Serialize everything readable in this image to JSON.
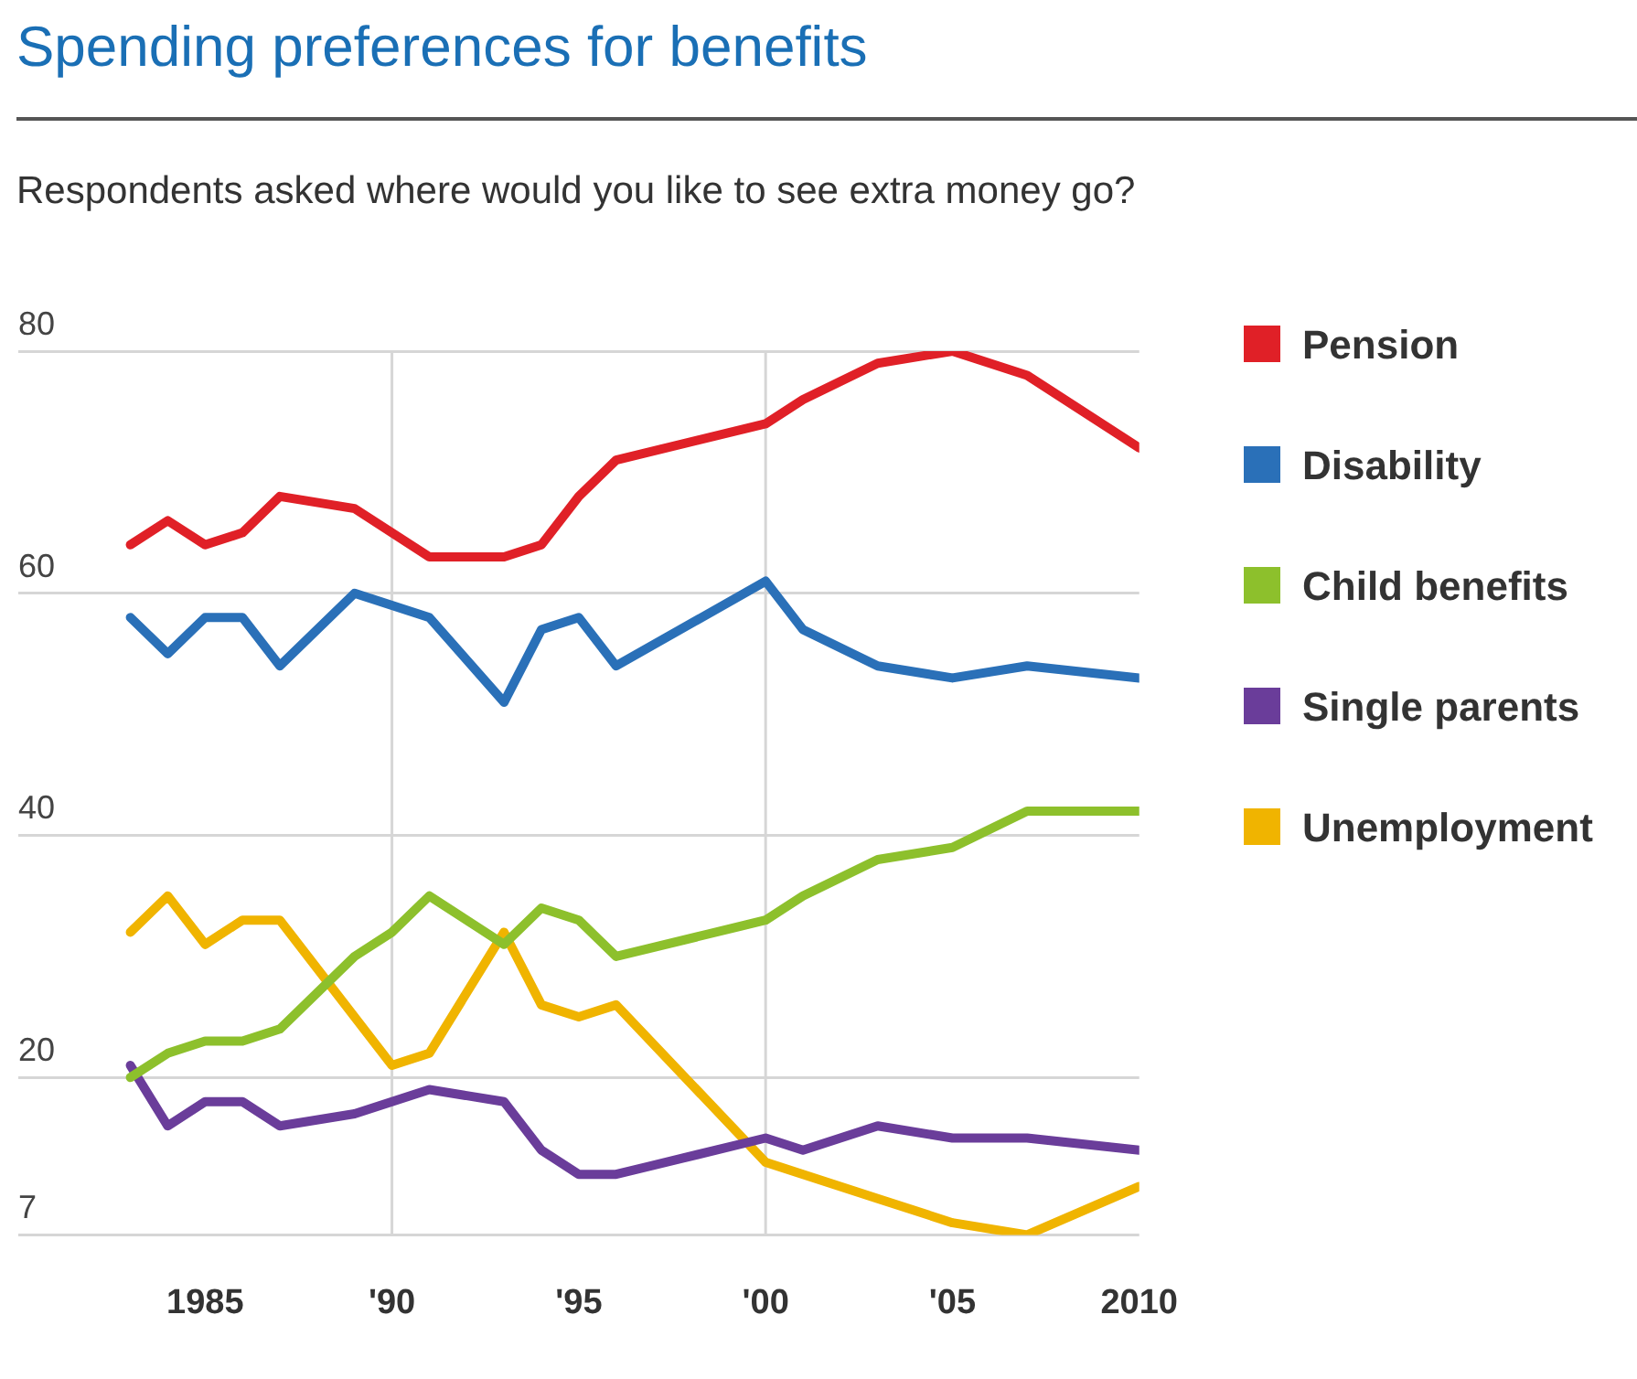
{
  "chart_data": {
    "type": "line",
    "title": "Spending preferences for benefits",
    "subtitle": "Respondents asked where would you like to see extra money go?",
    "xlim": [
      1980,
      2010
    ],
    "ylim": [
      7,
      80
    ],
    "xticks": [
      {
        "value": 1985,
        "label": "1985"
      },
      {
        "value": 1990,
        "label": "'90"
      },
      {
        "value": 1995,
        "label": "'95"
      },
      {
        "value": 2000,
        "label": "'00"
      },
      {
        "value": 2005,
        "label": "'05"
      },
      {
        "value": 2010,
        "label": "2010"
      }
    ],
    "yticks": [
      7,
      20,
      40,
      60,
      80
    ],
    "grid": "y",
    "legend": "right",
    "ref_lines": [
      {
        "axis": "x",
        "value": 1990,
        "label": null
      },
      {
        "axis": "x",
        "value": 2000,
        "label": null
      }
    ],
    "series": [
      {
        "name": "Pension",
        "color": "#e02027",
        "x": [
          1983,
          1984,
          1985,
          1986,
          1987,
          1989,
          1991,
          1993,
          1994,
          1995,
          1996,
          2000,
          2001,
          2003,
          2005,
          2007,
          2010
        ],
        "values": [
          64,
          66,
          64,
          65,
          68,
          67,
          63,
          63,
          64,
          68,
          71,
          74,
          76,
          79,
          80,
          78,
          72
        ]
      },
      {
        "name": "Disability",
        "color": "#2a70b8",
        "x": [
          1983,
          1984,
          1985,
          1986,
          1987,
          1989,
          1991,
          1993,
          1994,
          1995,
          1996,
          2000,
          2001,
          2003,
          2005,
          2007,
          2010
        ],
        "values": [
          58,
          55,
          58,
          58,
          54,
          60,
          58,
          51,
          57,
          58,
          54,
          61,
          57,
          54,
          53,
          54,
          53
        ]
      },
      {
        "name": "Child benefits",
        "color": "#8dc02c",
        "x": [
          1983,
          1984,
          1985,
          1986,
          1987,
          1989,
          1990,
          1991,
          1993,
          1994,
          1995,
          1996,
          2000,
          2001,
          2003,
          2005,
          2007,
          2010
        ],
        "values": [
          20,
          22,
          23,
          23,
          24,
          30,
          32,
          35,
          31,
          34,
          33,
          30,
          33,
          35,
          38,
          39,
          42,
          42
        ]
      },
      {
        "name": "Single parents",
        "color": "#6a3d9a",
        "x": [
          1983,
          1984,
          1985,
          1986,
          1987,
          1989,
          1990,
          1991,
          1993,
          1994,
          1995,
          1996,
          2000,
          2001,
          2003,
          2005,
          2007,
          2010
        ],
        "values": [
          21,
          16,
          18,
          18,
          16,
          17,
          18,
          19,
          18,
          14,
          12,
          12,
          15,
          14,
          16,
          15,
          15,
          14
        ]
      },
      {
        "name": "Unemployment",
        "color": "#f0b400",
        "x": [
          1983,
          1984,
          1985,
          1986,
          1987,
          1990,
          1991,
          1993,
          1994,
          1995,
          1996,
          2000,
          2001,
          2003,
          2005,
          2007,
          2010
        ],
        "values": [
          32,
          35,
          31,
          33,
          33,
          21,
          22,
          32,
          26,
          25,
          26,
          13,
          12,
          10,
          8,
          7,
          11
        ]
      }
    ]
  }
}
